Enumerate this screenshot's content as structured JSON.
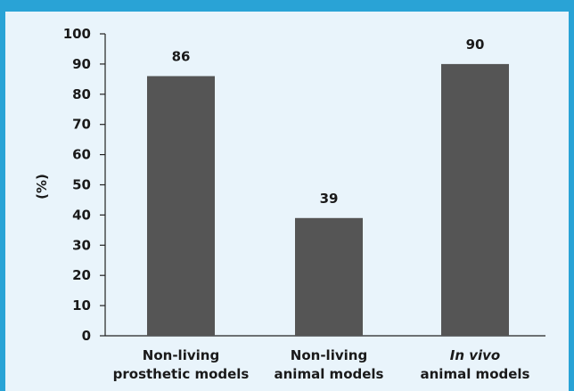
{
  "chart_data": {
    "type": "bar",
    "categories": [
      [
        "Non-living",
        "prosthetic models"
      ],
      [
        "Non-living",
        "animal models"
      ],
      [
        "In vivo",
        "animal models"
      ]
    ],
    "category_italic_first_line": [
      false,
      false,
      true
    ],
    "values": [
      86,
      39,
      90
    ],
    "value_labels": [
      "86",
      "39",
      "90"
    ],
    "ylabel": "(%)",
    "ylim": [
      0,
      100
    ],
    "yticks": [
      0,
      10,
      20,
      30,
      40,
      50,
      60,
      70,
      80,
      90,
      100
    ],
    "bar_color": "#555555",
    "grid": false
  },
  "colors": {
    "frame": "#29a3d6",
    "panel": "#e9f4fb"
  }
}
